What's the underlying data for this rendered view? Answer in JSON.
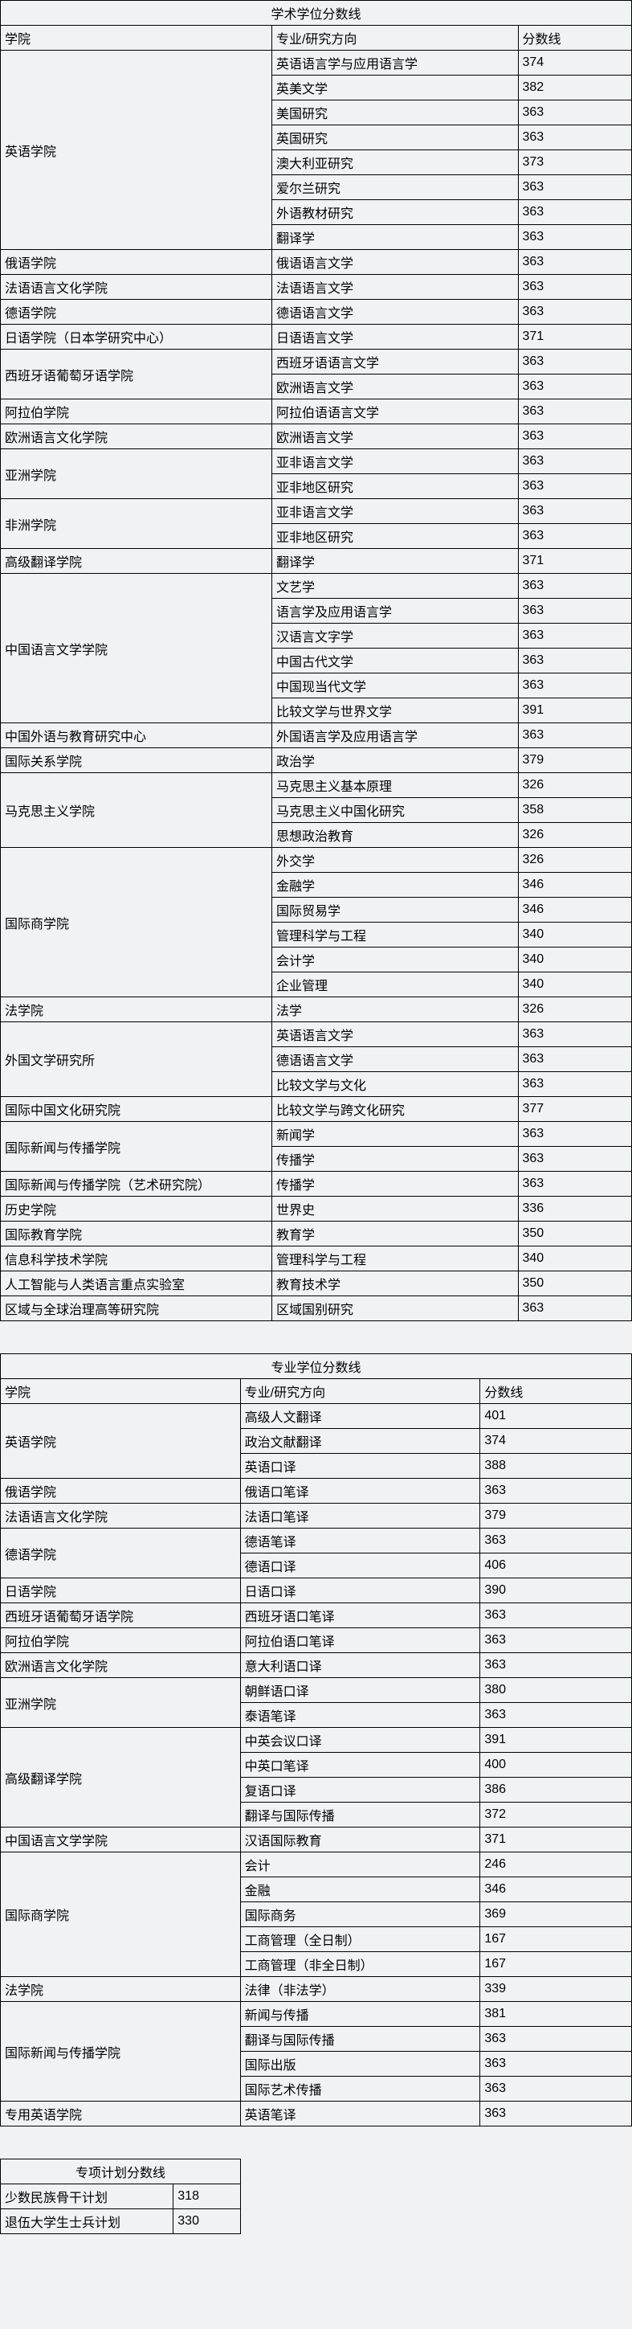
{
  "table1": {
    "title": "学术学位分数线",
    "headers": [
      "学院",
      "专业/研究方向",
      "分数线"
    ],
    "colleges": [
      {
        "name": "英语学院",
        "majors": [
          {
            "name": "英语语言学与应用语言学",
            "score": "374"
          },
          {
            "name": "英美文学",
            "score": "382"
          },
          {
            "name": "美国研究",
            "score": "363"
          },
          {
            "name": "英国研究",
            "score": "363"
          },
          {
            "name": "澳大利亚研究",
            "score": "373"
          },
          {
            "name": "爱尔兰研究",
            "score": "363"
          },
          {
            "name": "外语教材研究",
            "score": "363"
          },
          {
            "name": "翻译学",
            "score": "363"
          }
        ]
      },
      {
        "name": "俄语学院",
        "majors": [
          {
            "name": "俄语语言文学",
            "score": "363"
          }
        ]
      },
      {
        "name": "法语语言文化学院",
        "majors": [
          {
            "name": "法语语言文学",
            "score": "363"
          }
        ]
      },
      {
        "name": "德语学院",
        "majors": [
          {
            "name": "德语语言文学",
            "score": "363"
          }
        ]
      },
      {
        "name": "日语学院（日本学研究中心）",
        "majors": [
          {
            "name": "日语语言文学",
            "score": "371"
          }
        ]
      },
      {
        "name": "西班牙语葡萄牙语学院",
        "majors": [
          {
            "name": "西班牙语语言文学",
            "score": "363"
          },
          {
            "name": "欧洲语言文学",
            "score": "363"
          }
        ]
      },
      {
        "name": "阿拉伯学院",
        "majors": [
          {
            "name": "阿拉伯语语言文学",
            "score": "363"
          }
        ]
      },
      {
        "name": "欧洲语言文化学院",
        "majors": [
          {
            "name": "欧洲语言文学",
            "score": "363"
          }
        ]
      },
      {
        "name": "亚洲学院",
        "majors": [
          {
            "name": "亚非语言文学",
            "score": "363"
          },
          {
            "name": "亚非地区研究",
            "score": "363"
          }
        ]
      },
      {
        "name": "非洲学院",
        "majors": [
          {
            "name": "亚非语言文学",
            "score": "363"
          },
          {
            "name": "亚非地区研究",
            "score": "363"
          }
        ]
      },
      {
        "name": "高级翻译学院",
        "majors": [
          {
            "name": "翻译学",
            "score": "371"
          }
        ]
      },
      {
        "name": "中国语言文学学院",
        "majors": [
          {
            "name": "文艺学",
            "score": "363"
          },
          {
            "name": "语言学及应用语言学",
            "score": "363"
          },
          {
            "name": "汉语言文字学",
            "score": "363"
          },
          {
            "name": "中国古代文学",
            "score": "363"
          },
          {
            "name": "中国现当代文学",
            "score": "363"
          },
          {
            "name": "比较文学与世界文学",
            "score": "391"
          }
        ]
      },
      {
        "name": "中国外语与教育研究中心",
        "majors": [
          {
            "name": "外国语言学及应用语言学",
            "score": "363"
          }
        ]
      },
      {
        "name": "国际关系学院",
        "majors": [
          {
            "name": "政治学",
            "score": "379"
          }
        ]
      },
      {
        "name": "马克思主义学院",
        "majors": [
          {
            "name": "马克思主义基本原理",
            "score": "326"
          },
          {
            "name": "马克思主义中国化研究",
            "score": "358"
          },
          {
            "name": "思想政治教育",
            "score": "326"
          }
        ]
      },
      {
        "name": "国际商学院",
        "majors": [
          {
            "name": "外交学",
            "score": "326"
          },
          {
            "name": "金融学",
            "score": "346"
          },
          {
            "name": "国际贸易学",
            "score": "346"
          },
          {
            "name": "管理科学与工程",
            "score": "340"
          },
          {
            "name": "会计学",
            "score": "340"
          },
          {
            "name": "企业管理",
            "score": "340"
          }
        ]
      },
      {
        "name": "法学院",
        "majors": [
          {
            "name": "法学",
            "score": "326"
          }
        ]
      },
      {
        "name": "外国文学研究所",
        "majors": [
          {
            "name": "英语语言文学",
            "score": "363"
          },
          {
            "name": "德语语言文学",
            "score": "363"
          },
          {
            "name": "比较文学与文化",
            "score": "363"
          }
        ]
      },
      {
        "name": "国际中国文化研究院",
        "majors": [
          {
            "name": "比较文学与跨文化研究",
            "score": "377"
          }
        ]
      },
      {
        "name": "国际新闻与传播学院",
        "majors": [
          {
            "name": "新闻学",
            "score": "363"
          },
          {
            "name": "传播学",
            "score": "363"
          }
        ]
      },
      {
        "name": "国际新闻与传播学院（艺术研究院）",
        "majors": [
          {
            "name": "传播学",
            "score": "363"
          }
        ]
      },
      {
        "name": "历史学院",
        "majors": [
          {
            "name": "世界史",
            "score": "336"
          }
        ]
      },
      {
        "name": "国际教育学院",
        "majors": [
          {
            "name": "教育学",
            "score": "350"
          }
        ]
      },
      {
        "name": "信息科学技术学院",
        "majors": [
          {
            "name": "管理科学与工程",
            "score": "340"
          }
        ]
      },
      {
        "name": "人工智能与人类语言重点实验室",
        "majors": [
          {
            "name": "教育技术学",
            "score": "350"
          }
        ]
      },
      {
        "name": "区域与全球治理高等研究院",
        "majors": [
          {
            "name": "区域国别研究",
            "score": "363"
          }
        ]
      }
    ]
  },
  "table2": {
    "title": "专业学位分数线",
    "headers": [
      "学院",
      "专业/研究方向",
      "分数线"
    ],
    "colleges": [
      {
        "name": "英语学院",
        "majors": [
          {
            "name": "高级人文翻译",
            "score": "401"
          },
          {
            "name": "政治文献翻译",
            "score": "374"
          },
          {
            "name": "英语口译",
            "score": "388"
          }
        ]
      },
      {
        "name": "俄语学院",
        "majors": [
          {
            "name": "俄语口笔译",
            "score": "363"
          }
        ]
      },
      {
        "name": "法语语言文化学院",
        "majors": [
          {
            "name": "法语口笔译",
            "score": "379"
          }
        ]
      },
      {
        "name": "德语学院",
        "majors": [
          {
            "name": "德语笔译",
            "score": "363"
          },
          {
            "name": "德语口译",
            "score": "406"
          }
        ]
      },
      {
        "name": "日语学院",
        "majors": [
          {
            "name": "日语口译",
            "score": "390"
          }
        ]
      },
      {
        "name": "西班牙语葡萄牙语学院",
        "majors": [
          {
            "name": "西班牙语口笔译",
            "score": "363"
          }
        ]
      },
      {
        "name": "阿拉伯学院",
        "majors": [
          {
            "name": "阿拉伯语口笔译",
            "score": "363"
          }
        ]
      },
      {
        "name": "欧洲语言文化学院",
        "majors": [
          {
            "name": "意大利语口译",
            "score": "363"
          }
        ]
      },
      {
        "name": "亚洲学院",
        "majors": [
          {
            "name": "朝鲜语口译",
            "score": "380"
          },
          {
            "name": "泰语笔译",
            "score": "363"
          }
        ]
      },
      {
        "name": "高级翻译学院",
        "majors": [
          {
            "name": "中英会议口译",
            "score": "391"
          },
          {
            "name": "中英口笔译",
            "score": "400"
          },
          {
            "name": "复语口译",
            "score": "386"
          },
          {
            "name": "翻译与国际传播",
            "score": "372"
          }
        ]
      },
      {
        "name": "中国语言文学学院",
        "majors": [
          {
            "name": "汉语国际教育",
            "score": "371"
          }
        ]
      },
      {
        "name": "国际商学院",
        "majors": [
          {
            "name": "会计",
            "score": "246"
          },
          {
            "name": "金融",
            "score": "346"
          },
          {
            "name": "国际商务",
            "score": "369"
          },
          {
            "name": "工商管理（全日制）",
            "score": "167"
          },
          {
            "name": "工商管理（非全日制）",
            "score": "167"
          }
        ]
      },
      {
        "name": "法学院",
        "majors": [
          {
            "name": "法律（非法学）",
            "score": "339"
          }
        ]
      },
      {
        "name": "国际新闻与传播学院",
        "majors": [
          {
            "name": "新闻与传播",
            "score": "381"
          },
          {
            "name": "翻译与国际传播",
            "score": "363"
          },
          {
            "name": "国际出版",
            "score": "363"
          },
          {
            "name": "国际艺术传播",
            "score": "363"
          }
        ]
      },
      {
        "name": "专用英语学院",
        "majors": [
          {
            "name": "英语笔译",
            "score": "363"
          }
        ]
      }
    ]
  },
  "table3": {
    "title": "专项计划分数线",
    "rows": [
      {
        "name": "少数民族骨干计划",
        "score": "318"
      },
      {
        "name": "退伍大学生士兵计划",
        "score": "330"
      }
    ]
  }
}
